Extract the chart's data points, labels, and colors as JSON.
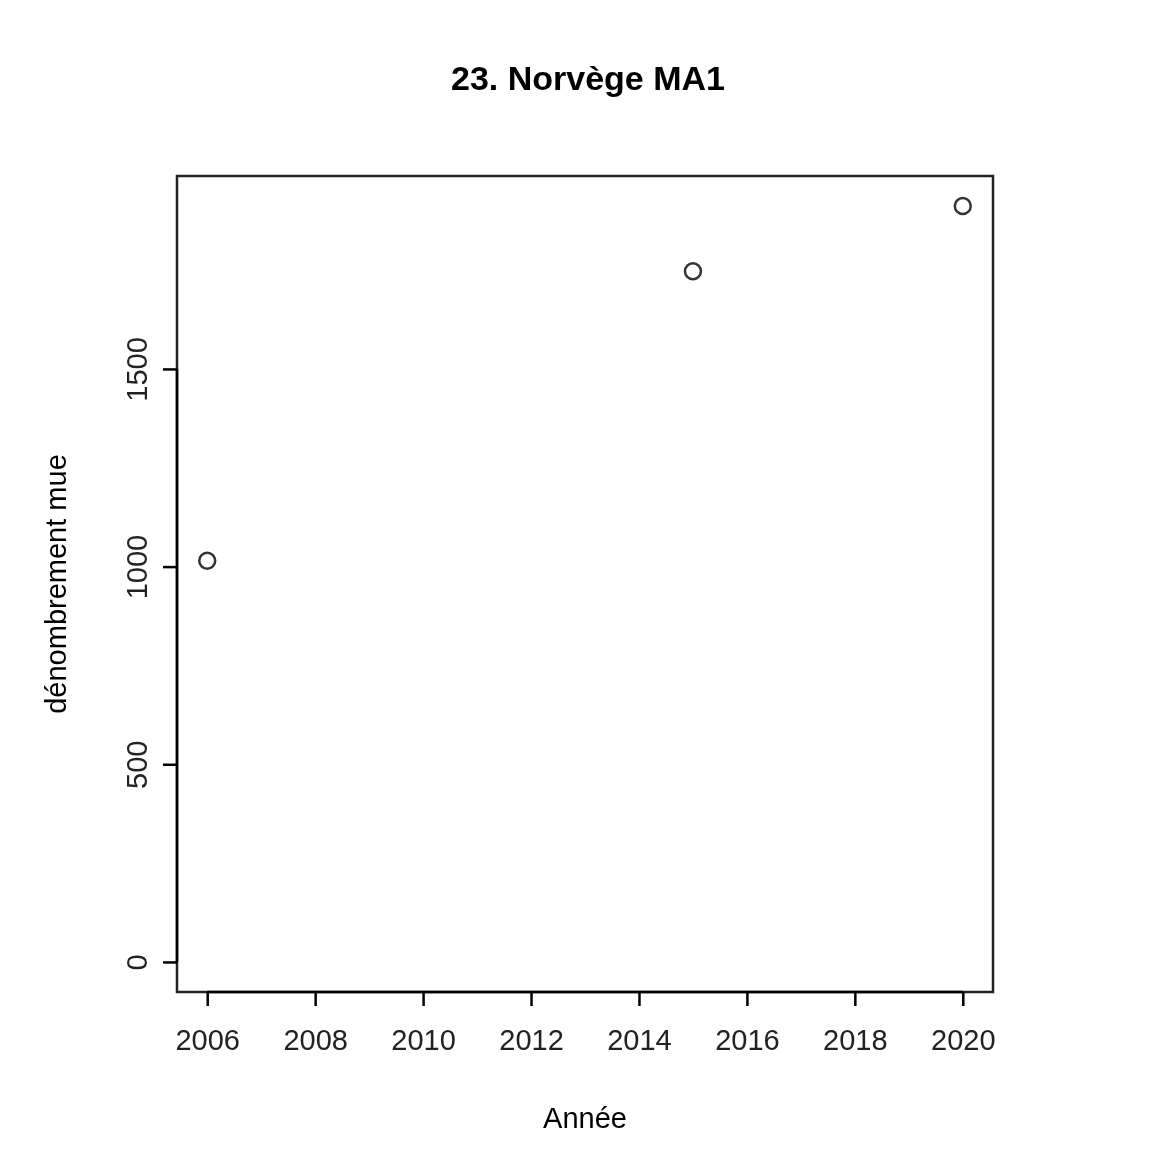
{
  "chart_data": {
    "type": "scatter",
    "title": "23. Norvège MA1",
    "xlabel": "Année",
    "ylabel": "dénombrement mue",
    "x": [
      2006,
      2015,
      2020
    ],
    "values": [
      1015,
      1747,
      1912
    ],
    "color": "#333333",
    "marker": "circle",
    "xlim": [
      2005.44,
      2020.56
    ],
    "xticks": [
      2006,
      2008,
      2010,
      2012,
      2014,
      2016,
      2018,
      2020
    ],
    "ylim": [
      -76,
      1988
    ],
    "yticks": [
      0,
      500,
      1000,
      1500
    ]
  }
}
